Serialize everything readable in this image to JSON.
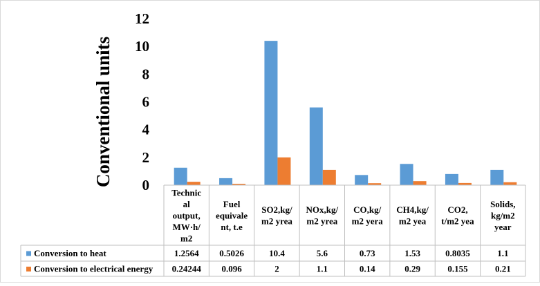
{
  "chart_data": {
    "type": "bar",
    "title": "",
    "xlabel": "",
    "ylabel": "Conventional units",
    "ylim": [
      0,
      12
    ],
    "yticks": [
      0,
      2,
      4,
      6,
      8,
      10,
      12
    ],
    "grid": false,
    "legend": "data-table-left",
    "categories": [
      [
        "Technic",
        "al",
        "output,",
        "MW·h/",
        "m2"
      ],
      [
        "Fuel",
        "equivale",
        "nt, t.e"
      ],
      [
        "SO2,kg/",
        "m2 yrea"
      ],
      [
        "NOx,kg/",
        "m2 yrea"
      ],
      [
        "CO,kg/",
        "m2 yera"
      ],
      [
        "CH4,kg/",
        "m2 yea"
      ],
      [
        "CO2,",
        "t/m2 yea"
      ],
      [
        "Solids,",
        "kg/m2",
        "year"
      ]
    ],
    "series": [
      {
        "name": "Conversion to heat",
        "color": "#5B9BD5",
        "values": [
          1.2564,
          0.5026,
          10.4,
          5.6,
          0.73,
          1.53,
          0.8035,
          1.1
        ],
        "labels": [
          "1.2564",
          "0.5026",
          "10.4",
          "5.6",
          "0.73",
          "1.53",
          "0.8035",
          "1.1"
        ]
      },
      {
        "name": "Conversion to electrical energy",
        "color": "#ED7D31",
        "values": [
          0.24244,
          0.096,
          2,
          1.1,
          0.14,
          0.29,
          0.155,
          0.21
        ],
        "labels": [
          "0.24244",
          "0.096",
          "2",
          "1.1",
          "0.14",
          "0.29",
          "0.155",
          "0.21"
        ]
      }
    ]
  }
}
